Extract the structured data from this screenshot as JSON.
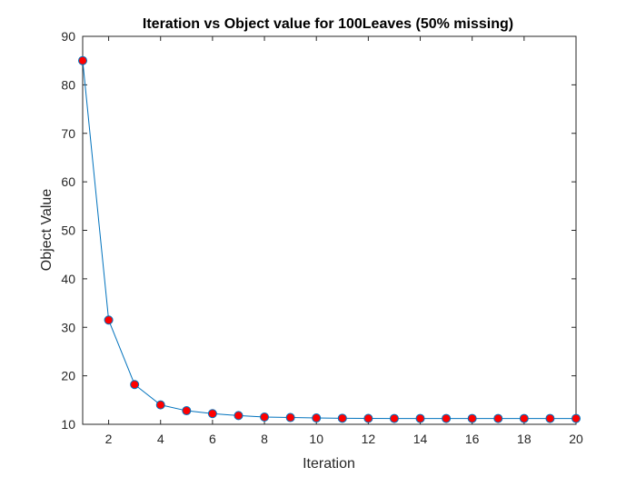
{
  "chart_data": {
    "type": "line",
    "title": "Iteration vs Object value for 100Leaves (50% missing)",
    "xlabel": "Iteration",
    "ylabel": "Object Value",
    "xlim": [
      1,
      20
    ],
    "ylim": [
      10,
      90
    ],
    "xticks": [
      2,
      4,
      6,
      8,
      10,
      12,
      14,
      16,
      18,
      20
    ],
    "yticks": [
      10,
      20,
      30,
      40,
      50,
      60,
      70,
      80,
      90
    ],
    "grid": false,
    "series": [
      {
        "x": [
          1,
          2,
          3,
          4,
          5,
          6,
          7,
          8,
          9,
          10,
          11,
          12,
          13,
          14,
          15,
          16,
          17,
          18,
          19,
          20
        ],
        "y": [
          85.0,
          31.5,
          18.2,
          14.0,
          12.8,
          12.2,
          11.8,
          11.5,
          11.4,
          11.3,
          11.25,
          11.22,
          11.2,
          11.2,
          11.2,
          11.2,
          11.2,
          11.2,
          11.2,
          11.2
        ],
        "line_color": "#0072BD",
        "marker_face_color": "#FF0000",
        "marker_edge_color": "#0072BD"
      }
    ]
  }
}
